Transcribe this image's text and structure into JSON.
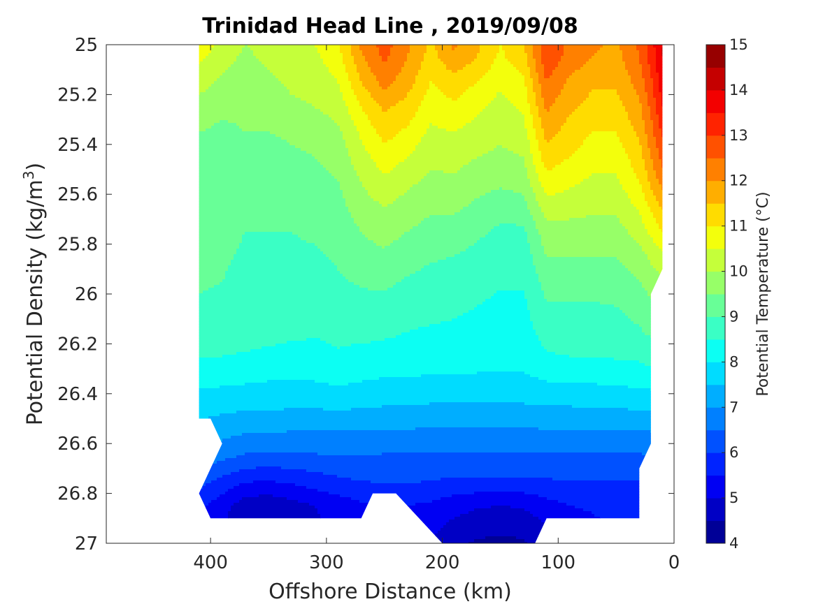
{
  "chart_data": {
    "type": "heatmap",
    "title": "Trinidad Head Line , 2019/09/08",
    "xlabel": "Offshore Distance (km)",
    "ylabel": "Potential Density (kg/m",
    "ylabel_superscript": "3",
    "ylabel_suffix": ")",
    "xlim": [
      490,
      0
    ],
    "ylim": [
      25,
      27
    ],
    "x_reversed": true,
    "y_reversed": true,
    "xticks": [
      400,
      300,
      200,
      100,
      0
    ],
    "yticks": [
      25,
      25.2,
      25.4,
      25.6,
      25.8,
      26,
      26.2,
      26.4,
      26.6,
      26.8,
      27
    ],
    "ytick_labels": [
      "25",
      "25.2",
      "25.4",
      "25.6",
      "25.8",
      "26",
      "26.2",
      "26.4",
      "26.6",
      "26.8",
      "27"
    ],
    "grid": false,
    "colorbar": {
      "label": "Potential Temperature (°C)",
      "range": [
        4,
        15
      ],
      "ticks": [
        4,
        5,
        6,
        7,
        8,
        9,
        10,
        11,
        12,
        13,
        14,
        15
      ],
      "colormap": "jet",
      "levels": 22
    },
    "x": [
      410,
      390,
      370,
      350,
      330,
      310,
      290,
      270,
      250,
      230,
      210,
      190,
      170,
      150,
      130,
      110,
      90,
      70,
      50,
      30,
      20,
      10
    ],
    "y": [
      25.0,
      25.05,
      25.15,
      25.25,
      25.35,
      25.45,
      25.55,
      25.65,
      25.75,
      25.85,
      25.95,
      26.05,
      26.15,
      26.25,
      26.35,
      26.45,
      26.55,
      26.65,
      26.75,
      26.85,
      26.95,
      27.0
    ],
    "z": [
      [
        10.9,
        10.3,
        10.0,
        10.2,
        10.4,
        10.5,
        10.9,
        12.1,
        12.7,
        12.1,
        11.4,
        12.1,
        11.6,
        11.0,
        11.4,
        12.9,
        12.4,
        12.1,
        11.9,
        12.6,
        13.3,
        14.0
      ],
      [
        10.6,
        10.2,
        9.9,
        10.1,
        10.3,
        10.4,
        10.8,
        11.9,
        12.6,
        12.0,
        11.3,
        11.9,
        11.5,
        10.9,
        11.3,
        12.9,
        12.3,
        12.0,
        11.8,
        12.5,
        13.2,
        14.0
      ],
      [
        10.2,
        9.9,
        9.7,
        9.9,
        10.1,
        10.2,
        10.5,
        11.5,
        12.2,
        11.7,
        11.0,
        11.3,
        11.0,
        10.6,
        10.9,
        12.5,
        11.9,
        11.6,
        11.6,
        12.2,
        12.9,
        13.8
      ],
      [
        9.8,
        9.6,
        9.6,
        9.7,
        9.9,
        10.0,
        10.2,
        11.0,
        11.6,
        11.3,
        10.7,
        10.9,
        10.6,
        10.3,
        10.6,
        12.1,
        11.6,
        11.3,
        11.3,
        11.9,
        12.6,
        13.5
      ],
      [
        9.5,
        9.4,
        9.5,
        9.5,
        9.6,
        9.7,
        9.9,
        10.6,
        11.2,
        10.9,
        10.4,
        10.5,
        10.3,
        10.1,
        10.3,
        11.7,
        11.3,
        11.0,
        11.0,
        11.6,
        12.3,
        13.1
      ],
      [
        9.4,
        9.3,
        9.3,
        9.3,
        9.4,
        9.5,
        9.7,
        10.3,
        10.8,
        10.5,
        10.1,
        10.2,
        10.0,
        9.9,
        10.0,
        11.3,
        11.0,
        10.7,
        10.7,
        11.3,
        12.0,
        12.7
      ],
      [
        9.3,
        9.2,
        9.2,
        9.2,
        9.2,
        9.3,
        9.5,
        10.0,
        10.4,
        10.1,
        9.9,
        9.9,
        9.7,
        9.6,
        9.7,
        10.8,
        10.6,
        10.4,
        10.4,
        11.0,
        11.6,
        12.2
      ],
      [
        9.25,
        9.15,
        9.1,
        9.1,
        9.1,
        9.15,
        9.3,
        9.8,
        10.0,
        9.8,
        9.6,
        9.6,
        9.4,
        9.2,
        9.3,
        10.3,
        10.2,
        10.1,
        10.1,
        10.6,
        11.1,
        11.6
      ],
      [
        9.2,
        9.1,
        9.0,
        9.0,
        9.0,
        9.05,
        9.15,
        9.5,
        9.7,
        9.5,
        9.3,
        9.3,
        9.1,
        8.9,
        8.9,
        9.8,
        9.8,
        9.8,
        9.8,
        10.2,
        10.6,
        11.0
      ],
      [
        9.15,
        9.05,
        8.95,
        8.95,
        8.95,
        8.95,
        9.05,
        9.3,
        9.4,
        9.2,
        9.05,
        9.0,
        8.85,
        8.7,
        8.7,
        9.5,
        9.5,
        9.5,
        9.5,
        9.8,
        10.1,
        10.4
      ],
      [
        9.05,
        9.0,
        8.9,
        8.9,
        8.85,
        8.85,
        8.95,
        9.05,
        9.1,
        8.95,
        8.85,
        8.8,
        8.65,
        8.55,
        8.55,
        9.2,
        9.2,
        9.2,
        9.25,
        9.5,
        9.7,
        9.9
      ],
      [
        8.95,
        8.9,
        8.8,
        8.8,
        8.75,
        8.7,
        8.8,
        8.85,
        8.85,
        8.7,
        8.65,
        8.6,
        8.5,
        8.4,
        8.4,
        8.95,
        8.95,
        8.95,
        9.0,
        9.2,
        9.4,
        9.6
      ],
      [
        8.8,
        8.75,
        8.7,
        8.65,
        8.6,
        8.55,
        8.6,
        8.65,
        8.6,
        8.5,
        8.45,
        8.4,
        8.35,
        8.3,
        8.3,
        8.7,
        8.75,
        8.75,
        8.8,
        8.95,
        9.1,
        9.3
      ],
      [
        8.5,
        8.5,
        8.45,
        8.4,
        8.35,
        8.35,
        8.45,
        8.35,
        8.3,
        8.3,
        8.25,
        8.25,
        8.2,
        8.15,
        8.15,
        8.45,
        8.5,
        8.5,
        8.55,
        8.6,
        8.7,
        8.9
      ],
      [
        8.1,
        8.1,
        8.05,
        8.0,
        8.0,
        8.0,
        8.1,
        8.0,
        7.95,
        7.95,
        7.9,
        7.9,
        7.9,
        7.9,
        7.9,
        8.0,
        8.05,
        8.05,
        8.1,
        8.15,
        8.2,
        8.4
      ],
      [
        7.7,
        7.65,
        7.6,
        7.6,
        7.55,
        7.55,
        7.6,
        7.55,
        7.5,
        7.5,
        7.45,
        7.45,
        7.45,
        7.45,
        7.45,
        7.5,
        7.5,
        7.55,
        7.55,
        7.6,
        7.6,
        7.8
      ],
      [
        7.35,
        7.2,
        7.05,
        7.05,
        7.0,
        7.0,
        7.0,
        7.0,
        6.95,
        6.95,
        6.95,
        6.95,
        6.95,
        6.95,
        6.95,
        6.95,
        6.95,
        6.95,
        6.95,
        6.95,
        7.0,
        7.2
      ],
      [
        6.9,
        6.65,
        6.45,
        6.4,
        6.4,
        6.45,
        6.5,
        6.5,
        6.45,
        6.45,
        6.45,
        6.45,
        6.45,
        6.45,
        6.45,
        6.45,
        6.45,
        6.45,
        6.45,
        6.45,
        6.5,
        6.7
      ],
      [
        6.2,
        5.85,
        5.55,
        5.5,
        5.6,
        5.75,
        5.9,
        6.0,
        6.05,
        6.05,
        6.0,
        5.9,
        5.9,
        5.9,
        5.9,
        5.95,
        6.0,
        6.0,
        6.0,
        6.0,
        6.05,
        6.2
      ],
      [
        5.6,
        5.2,
        4.7,
        4.6,
        4.8,
        5.0,
        5.2,
        5.4,
        5.5,
        5.5,
        5.4,
        5.2,
        5.05,
        5.0,
        5.05,
        5.3,
        5.5,
        5.55,
        5.6,
        5.6,
        5.65,
        5.8
      ],
      [
        5.4,
        5.0,
        4.6,
        4.5,
        4.7,
        4.9,
        5.1,
        5.3,
        5.4,
        5.3,
        5.1,
        4.8,
        4.6,
        4.55,
        4.6,
        4.9,
        5.2,
        5.4,
        5.5,
        5.5,
        5.55,
        5.7
      ],
      [
        5.3,
        4.9,
        4.5,
        4.4,
        4.6,
        4.8,
        5.0,
        5.2,
        5.3,
        5.2,
        5.0,
        4.6,
        4.45,
        4.4,
        4.45,
        4.8,
        5.1,
        5.3,
        5.4,
        5.45,
        5.5,
        5.6
      ]
    ],
    "data_mask_polygon": [
      [
        410,
        25.0
      ],
      [
        10,
        25.0
      ],
      [
        10,
        25.9
      ],
      [
        20,
        26.0
      ],
      [
        20,
        26.6
      ],
      [
        30,
        26.7
      ],
      [
        30,
        26.9
      ],
      [
        110,
        26.9
      ],
      [
        120,
        27.0
      ],
      [
        200,
        27.0
      ],
      [
        220,
        26.9
      ],
      [
        240,
        26.8
      ],
      [
        260,
        26.8
      ],
      [
        270,
        26.9
      ],
      [
        400,
        26.9
      ],
      [
        410,
        26.8
      ],
      [
        390,
        26.6
      ],
      [
        400,
        26.5
      ],
      [
        410,
        26.5
      ]
    ]
  }
}
